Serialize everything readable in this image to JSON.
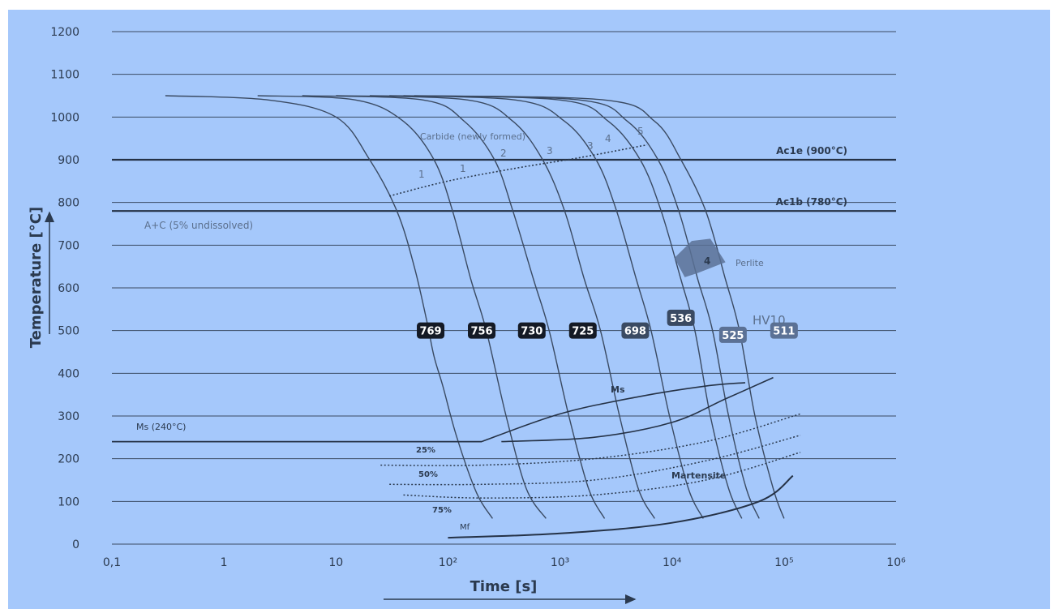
{
  "colors": {
    "background": "#a5c8fb",
    "line": "#3a4a62",
    "text": "#2b3a4f",
    "muted_text": "#5b6f8c",
    "badge_dark": "#141a25",
    "badge_mid": "#3a4a62",
    "badge_light": "#5b7195",
    "perlite_region": "#5b7195"
  },
  "chart_data": {
    "type": "line",
    "xlabel": "Time [s]",
    "ylabel": "Temperature [°C]",
    "x_scale": "log",
    "xlim": [
      0.1,
      1000000
    ],
    "ylim": [
      0,
      1200
    ],
    "grid": "horizontal",
    "x_ticks": [
      "0,1",
      "1",
      "10",
      "10²",
      "10³",
      "10⁴",
      "10⁵",
      "10⁶"
    ],
    "y_ticks": [
      "0",
      "100",
      "200",
      "300",
      "400",
      "500",
      "600",
      "700",
      "800",
      "900",
      "1000",
      "1100",
      "1200"
    ],
    "reference_lines": [
      {
        "label": "Ac1e (900°C)",
        "y": 900
      },
      {
        "label": "Ac1b (780°C)",
        "y": 780
      }
    ],
    "region_labels": [
      {
        "text": "A+C (5% undissolved)"
      },
      {
        "text": "Carbide (newly formed)"
      },
      {
        "text": "Perlite"
      },
      {
        "text": "Martensite"
      },
      {
        "text": "Ms"
      },
      {
        "text": "Ms (240°C)"
      },
      {
        "text": "Mf"
      },
      {
        "text": "25%"
      },
      {
        "text": "50%"
      },
      {
        "text": "75%"
      },
      {
        "text": "HV10"
      }
    ],
    "curve_labels": [
      "1",
      "1",
      "2",
      "3",
      "3",
      "4",
      "5"
    ],
    "perlite_percent_label": "4",
    "hardness_values": [
      {
        "value": "769",
        "x": 70,
        "y": 500
      },
      {
        "value": "756",
        "x": 200,
        "y": 500
      },
      {
        "value": "730",
        "x": 560,
        "y": 500
      },
      {
        "value": "725",
        "x": 1600,
        "y": 500
      },
      {
        "value": "698",
        "x": 4700,
        "y": 500
      },
      {
        "value": "536",
        "x": 12000,
        "y": 530
      },
      {
        "value": "525",
        "x": 35000,
        "y": 490
      },
      {
        "value": "511",
        "x": 100000,
        "y": 500
      }
    ],
    "cooling_curves": [
      {
        "points": [
          [
            0.3,
            1050
          ],
          [
            2.5,
            1040
          ],
          [
            10,
            1000
          ],
          [
            20,
            900
          ],
          [
            35,
            780
          ],
          [
            50,
            650
          ],
          [
            65,
            520
          ],
          [
            75,
            440
          ],
          [
            90,
            370
          ],
          [
            120,
            250
          ],
          [
            180,
            120
          ],
          [
            250,
            60
          ]
        ]
      },
      {
        "points": [
          [
            2,
            1050
          ],
          [
            15,
            1040
          ],
          [
            40,
            990
          ],
          [
            75,
            900
          ],
          [
            110,
            780
          ],
          [
            160,
            620
          ],
          [
            220,
            500
          ],
          [
            330,
            300
          ],
          [
            500,
            130
          ],
          [
            750,
            60
          ]
        ]
      },
      {
        "points": [
          [
            5,
            1050
          ],
          [
            60,
            1040
          ],
          [
            140,
            990
          ],
          [
            260,
            900
          ],
          [
            380,
            780
          ],
          [
            580,
            620
          ],
          [
            800,
            500
          ],
          [
            1200,
            300
          ],
          [
            1800,
            130
          ],
          [
            2500,
            60
          ]
        ]
      },
      {
        "points": [
          [
            10,
            1050
          ],
          [
            150,
            1040
          ],
          [
            380,
            990
          ],
          [
            700,
            900
          ],
          [
            1100,
            780
          ],
          [
            1650,
            620
          ],
          [
            2300,
            500
          ],
          [
            3400,
            300
          ],
          [
            5000,
            130
          ],
          [
            7000,
            60
          ]
        ]
      },
      {
        "points": [
          [
            20,
            1050
          ],
          [
            400,
            1040
          ],
          [
            1100,
            990
          ],
          [
            2100,
            900
          ],
          [
            3200,
            780
          ],
          [
            4800,
            620
          ],
          [
            6500,
            500
          ],
          [
            9500,
            300
          ],
          [
            14000,
            130
          ],
          [
            19000,
            60
          ]
        ]
      },
      {
        "points": [
          [
            30,
            1050
          ],
          [
            1000,
            1040
          ],
          [
            2700,
            990
          ],
          [
            5200,
            900
          ],
          [
            8000,
            780
          ],
          [
            12000,
            620
          ],
          [
            16000,
            500
          ],
          [
            22000,
            300
          ],
          [
            32000,
            130
          ],
          [
            42000,
            60
          ]
        ]
      },
      {
        "points": [
          [
            40,
            1050
          ],
          [
            1500,
            1040
          ],
          [
            4000,
            990
          ],
          [
            7500,
            900
          ],
          [
            11500,
            780
          ],
          [
            17000,
            620
          ],
          [
            23000,
            500
          ],
          [
            32000,
            300
          ],
          [
            46000,
            130
          ],
          [
            60000,
            60
          ]
        ]
      },
      {
        "points": [
          [
            50,
            1050
          ],
          [
            2500,
            1040
          ],
          [
            7000,
            990
          ],
          [
            12000,
            900
          ],
          [
            20000,
            780
          ],
          [
            30000,
            620
          ],
          [
            40000,
            500
          ],
          [
            55000,
            300
          ],
          [
            80000,
            130
          ],
          [
            100000,
            60
          ]
        ]
      }
    ],
    "carbide_line": [
      [
        30,
        815
      ],
      [
        100,
        850
      ],
      [
        400,
        880
      ],
      [
        1500,
        905
      ],
      [
        6000,
        935
      ]
    ],
    "ms_line": [
      [
        0.1,
        240
      ],
      [
        200,
        240
      ]
    ],
    "ms_lens_upper": [
      [
        200,
        240
      ],
      [
        1000,
        305
      ],
      [
        5000,
        345
      ],
      [
        20000,
        370
      ],
      [
        45000,
        378
      ]
    ],
    "ms_lens_lower": [
      [
        300,
        240
      ],
      [
        2000,
        250
      ],
      [
        10000,
        285
      ],
      [
        30000,
        340
      ],
      [
        80000,
        390
      ]
    ],
    "pct_25_line": [
      [
        25,
        185
      ],
      [
        200,
        185
      ],
      [
        2000,
        200
      ],
      [
        20000,
        240
      ],
      [
        140000,
        305
      ]
    ],
    "pct_50_line": [
      [
        30,
        140
      ],
      [
        200,
        140
      ],
      [
        2000,
        150
      ],
      [
        20000,
        195
      ],
      [
        140000,
        255
      ]
    ],
    "pct_75_line": [
      [
        40,
        115
      ],
      [
        200,
        108
      ],
      [
        2000,
        115
      ],
      [
        20000,
        150
      ],
      [
        140000,
        215
      ]
    ],
    "mf_line": [
      [
        100,
        15
      ],
      [
        1000,
        25
      ],
      [
        10000,
        50
      ],
      [
        60000,
        100
      ],
      [
        120000,
        160
      ]
    ]
  }
}
